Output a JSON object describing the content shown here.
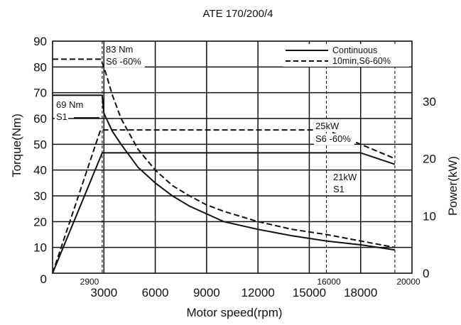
{
  "chart_data": {
    "type": "line",
    "title": "ATE 170/200/4",
    "xlabel": "Motor speed(rpm)",
    "ylabel_left": "Torque(Nm)",
    "ylabel_right": "Power(kW)",
    "xlim": [
      0,
      21000
    ],
    "ylim_left": [
      0,
      90
    ],
    "ylim_right": [
      0,
      40.5
    ],
    "x_ticks": [
      3000,
      6000,
      9000,
      12000,
      15000,
      18000
    ],
    "x_tick_labels": [
      "3000",
      "6000",
      "9000",
      "12000",
      "15000",
      "18000"
    ],
    "y_left_ticks": [
      0,
      10,
      20,
      30,
      40,
      50,
      60,
      70,
      80,
      90
    ],
    "y_left_tick_labels": [
      "0",
      "10",
      "20",
      "30",
      "40",
      "50",
      "60",
      "70",
      "80",
      "90"
    ],
    "y_right_ticks": [
      0,
      10,
      20,
      30
    ],
    "y_right_tick_labels": [
      "0",
      "10",
      "20",
      "30"
    ],
    "grid": true,
    "legend": {
      "position": "top-right",
      "entries": [
        "Continuous",
        "10min,S6-60%"
      ]
    },
    "series": [
      {
        "name": "Continuous",
        "axis": "left",
        "style": "solid",
        "x": [
          0,
          2900,
          3000,
          3500,
          4000,
          5000,
          6000,
          7000,
          8000,
          9000,
          10000,
          12000,
          14000,
          16000,
          18000,
          20000
        ],
        "values": [
          69,
          69,
          62,
          55,
          50,
          41,
          35,
          30,
          26,
          23,
          20,
          17,
          14.5,
          12.5,
          11,
          9
        ]
      },
      {
        "name": "10min,S6-60%",
        "axis": "left",
        "style": "dashed",
        "x": [
          0,
          2800,
          3000,
          3500,
          4000,
          5000,
          6000,
          7000,
          8000,
          9000,
          10000,
          12000,
          14000,
          16000,
          18000,
          20000
        ],
        "values": [
          83,
          83,
          80,
          69,
          60,
          48,
          40,
          34,
          30,
          26.5,
          24,
          20,
          17,
          15,
          12.5,
          10
        ]
      },
      {
        "name": "",
        "axis": "right",
        "style": "solid",
        "x": [
          0,
          2900,
          18000,
          20000
        ],
        "values": [
          0,
          21,
          21,
          19
        ]
      },
      {
        "name": "",
        "axis": "right",
        "style": "dashed",
        "x": [
          0,
          2800,
          16000,
          20000
        ],
        "values": [
          0,
          25,
          25,
          20
        ]
      }
    ],
    "reference_markers": [
      {
        "x": 2900,
        "style": "dashed"
      },
      {
        "x": 16000,
        "style": "dashed"
      },
      {
        "x": 20000,
        "style": "dashed"
      }
    ],
    "annotations": [
      {
        "text": "83 Nm"
      },
      {
        "text": "S6 -60%"
      },
      {
        "text": "69 Nm"
      },
      {
        "text": "S1"
      },
      {
        "text": "25kW"
      },
      {
        "text": "S6 -60%"
      },
      {
        "text": "21kW"
      },
      {
        "text": "S1"
      },
      {
        "text": "2900"
      },
      {
        "text": "16000"
      },
      {
        "text": "20000"
      }
    ]
  }
}
